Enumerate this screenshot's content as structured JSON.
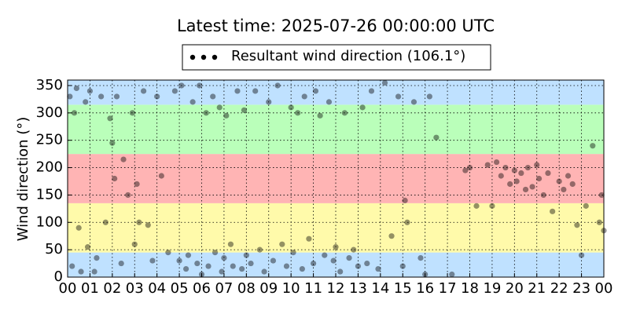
{
  "chart_data": {
    "type": "scatter",
    "title": "Latest time: 2025-07-26 00:00:00 UTC",
    "y_label": "Wind direction (°)",
    "grid": true,
    "xlim": [
      0,
      24
    ],
    "ylim": [
      0,
      360
    ],
    "xticks": [
      {
        "value": 0,
        "label": "00"
      },
      {
        "value": 1,
        "label": "01"
      },
      {
        "value": 2,
        "label": "02"
      },
      {
        "value": 3,
        "label": "03"
      },
      {
        "value": 4,
        "label": "04"
      },
      {
        "value": 5,
        "label": "05"
      },
      {
        "value": 6,
        "label": "06"
      },
      {
        "value": 7,
        "label": "07"
      },
      {
        "value": 8,
        "label": "08"
      },
      {
        "value": 9,
        "label": "09"
      },
      {
        "value": 10,
        "label": "10"
      },
      {
        "value": 11,
        "label": "11"
      },
      {
        "value": 12,
        "label": "12"
      },
      {
        "value": 13,
        "label": "13"
      },
      {
        "value": 14,
        "label": "14"
      },
      {
        "value": 15,
        "label": "15"
      },
      {
        "value": 16,
        "label": "16"
      },
      {
        "value": 17,
        "label": "17"
      },
      {
        "value": 18,
        "label": "18"
      },
      {
        "value": 19,
        "label": "19"
      },
      {
        "value": 20,
        "label": "20"
      },
      {
        "value": 21,
        "label": "21"
      },
      {
        "value": 22,
        "label": "22"
      },
      {
        "value": 23,
        "label": "23"
      },
      {
        "value": 24,
        "label": "00"
      }
    ],
    "yticks": [
      0,
      50,
      100,
      150,
      200,
      250,
      300,
      350
    ],
    "bands": [
      {
        "from": 0,
        "to": 45,
        "color": "#bfe1ff"
      },
      {
        "from": 45,
        "to": 135,
        "color": "#fffaaa"
      },
      {
        "from": 135,
        "to": 225,
        "color": "#ffb4b4"
      },
      {
        "from": 225,
        "to": 315,
        "color": "#baffba"
      },
      {
        "from": 315,
        "to": 360,
        "color": "#bfe1ff"
      }
    ],
    "series": [
      {
        "name": "Resultant wind direction (106.1°)",
        "color": "#000000",
        "x": [
          0.1,
          0.2,
          0.3,
          0.4,
          0.5,
          0.6,
          0.8,
          0.9,
          1.0,
          1.2,
          1.3,
          1.5,
          1.7,
          1.9,
          2.0,
          2.1,
          2.2,
          2.4,
          2.5,
          2.7,
          2.9,
          3.0,
          3.1,
          3.2,
          3.4,
          3.6,
          3.8,
          4.0,
          4.2,
          4.5,
          4.8,
          5.0,
          5.1,
          5.3,
          5.4,
          5.6,
          5.8,
          5.9,
          6.0,
          6.2,
          6.3,
          6.5,
          6.6,
          6.8,
          6.9,
          7.0,
          7.1,
          7.3,
          7.4,
          7.6,
          7.8,
          7.9,
          8.0,
          8.2,
          8.4,
          8.6,
          8.8,
          9.0,
          9.2,
          9.4,
          9.6,
          9.8,
          10.0,
          10.1,
          10.3,
          10.5,
          10.6,
          10.8,
          11.0,
          11.1,
          11.3,
          11.5,
          11.7,
          11.9,
          12.0,
          12.2,
          12.4,
          12.6,
          12.8,
          13.0,
          13.2,
          13.4,
          13.6,
          13.9,
          14.2,
          14.5,
          14.8,
          15.0,
          15.1,
          15.2,
          15.5,
          15.8,
          16.0,
          16.2,
          16.5,
          17.2,
          17.8,
          18.0,
          18.3,
          18.8,
          19.0,
          19.2,
          19.4,
          19.6,
          19.8,
          20.0,
          20.1,
          20.3,
          20.5,
          20.6,
          20.8,
          21.0,
          21.1,
          21.3,
          21.5,
          21.7,
          22.0,
          22.2,
          22.4,
          22.6,
          22.8,
          23.0,
          23.2,
          23.5,
          23.8,
          23.9,
          24.0
        ],
        "values": [
          330,
          20,
          300,
          345,
          90,
          10,
          320,
          55,
          340,
          10,
          35,
          330,
          100,
          290,
          245,
          180,
          330,
          25,
          215,
          150,
          300,
          60,
          170,
          100,
          340,
          95,
          30,
          330,
          185,
          45,
          340,
          30,
          350,
          15,
          40,
          320,
          25,
          350,
          5,
          300,
          20,
          330,
          45,
          310,
          10,
          35,
          295,
          60,
          20,
          340,
          15,
          305,
          40,
          25,
          340,
          50,
          10,
          320,
          30,
          350,
          60,
          20,
          310,
          45,
          300,
          15,
          330,
          70,
          25,
          340,
          295,
          40,
          320,
          30,
          55,
          10,
          300,
          35,
          50,
          20,
          310,
          25,
          340,
          15,
          355,
          75,
          330,
          20,
          140,
          100,
          320,
          35,
          5,
          330,
          255,
          5,
          195,
          200,
          130,
          205,
          130,
          210,
          185,
          200,
          170,
          195,
          175,
          190,
          160,
          200,
          165,
          205,
          180,
          150,
          190,
          120,
          175,
          160,
          185,
          170,
          95,
          40,
          130,
          240,
          100,
          150,
          85
        ]
      }
    ]
  }
}
